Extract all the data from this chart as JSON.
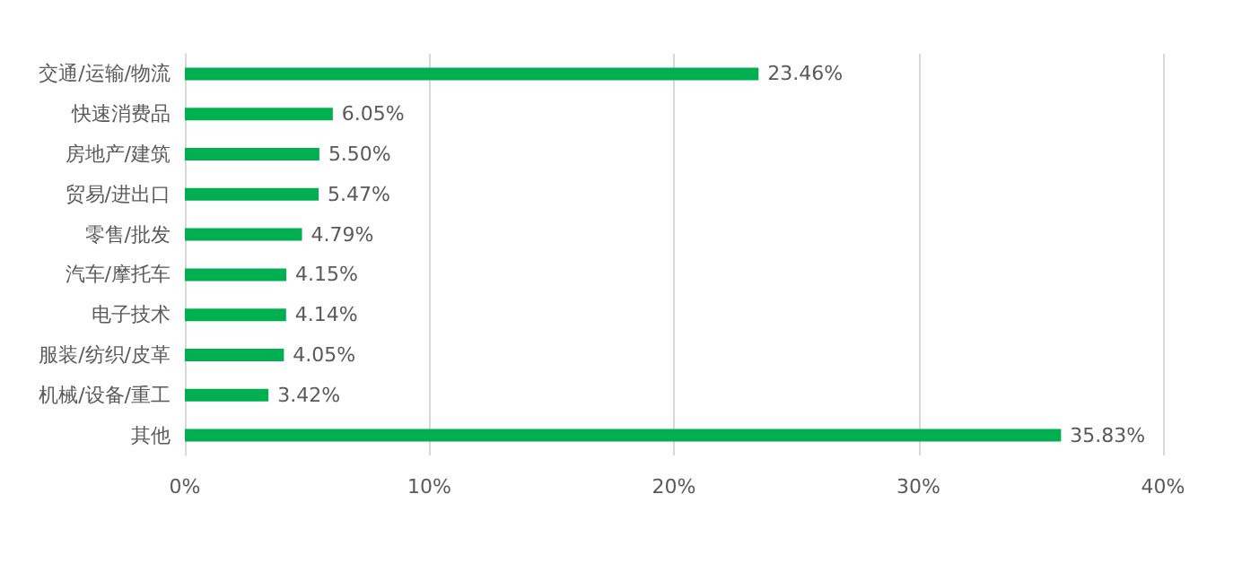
{
  "chart_data": {
    "type": "bar",
    "orientation": "horizontal",
    "categories": [
      "交通/运输/物流",
      "快速消费品",
      "房地产/建筑",
      "贸易/进出口",
      "零售/批发",
      "汽车/摩托车",
      "电子技术",
      "服装/纺织/皮革",
      "机械/设备/重工",
      "其他"
    ],
    "values": [
      23.46,
      6.05,
      5.5,
      5.47,
      4.79,
      4.15,
      4.14,
      4.05,
      3.42,
      35.83
    ],
    "value_labels": [
      "23.46%",
      "6.05%",
      "5.50%",
      "5.47%",
      "4.79%",
      "4.15%",
      "4.14%",
      "4.05%",
      "3.42%",
      "35.83%"
    ],
    "color": "#00b050",
    "xlim": [
      0,
      40
    ],
    "xticks": [
      {
        "value": 0,
        "label": "0%"
      },
      {
        "value": 10,
        "label": "10%"
      },
      {
        "value": 20,
        "label": "20%"
      },
      {
        "value": 30,
        "label": "30%"
      },
      {
        "value": 40,
        "label": "40%"
      }
    ],
    "grid": "x"
  }
}
